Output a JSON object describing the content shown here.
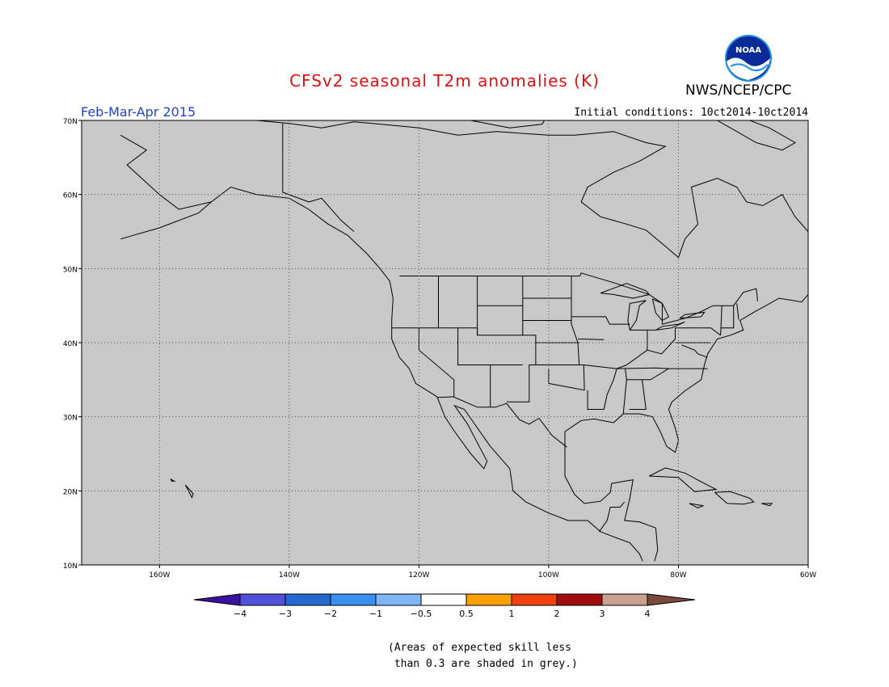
{
  "title": "CFSv2 seasonal T2m anomalies (K)",
  "organization": "NWS/NCEP/CPC",
  "logo_text": "NOAA",
  "period": "Feb-Mar-Apr 2015",
  "initial_conditions": "Initial conditions: 10ct2014-10ct2014",
  "colors": {
    "title": "#dd1111",
    "period": "#2244cc",
    "land_mask": "#c8c8c8",
    "no_signal": "#ffffff",
    "minus_half_to_minus_one": "#7fb6f5",
    "half_to_one": "#ffa000",
    "one_to_two": "#f04010"
  },
  "map": {
    "lon_range": [
      -172,
      -60
    ],
    "lat_range": [
      10,
      70
    ],
    "lat_labels": [
      "70N",
      "60N",
      "50N",
      "40N",
      "30N",
      "20N",
      "10N"
    ],
    "lon_labels": [
      "160W",
      "140W",
      "120W",
      "100W",
      "80W",
      "60W"
    ]
  },
  "colorbar": {
    "labels": [
      "−4",
      "−3",
      "−2",
      "−1",
      "−0.5",
      "0.5",
      "1",
      "2",
      "3",
      "4"
    ],
    "colors": [
      "#3a10a0",
      "#5050d8",
      "#2468d0",
      "#3a90ee",
      "#7fb6f5",
      "#ffffff",
      "#ffa000",
      "#f04010",
      "#a00c0c",
      "#c8a090",
      "#7a4a3a"
    ]
  },
  "footnote": "(Areas of expected skill less\n than 0.3 are shaded in grey.)"
}
